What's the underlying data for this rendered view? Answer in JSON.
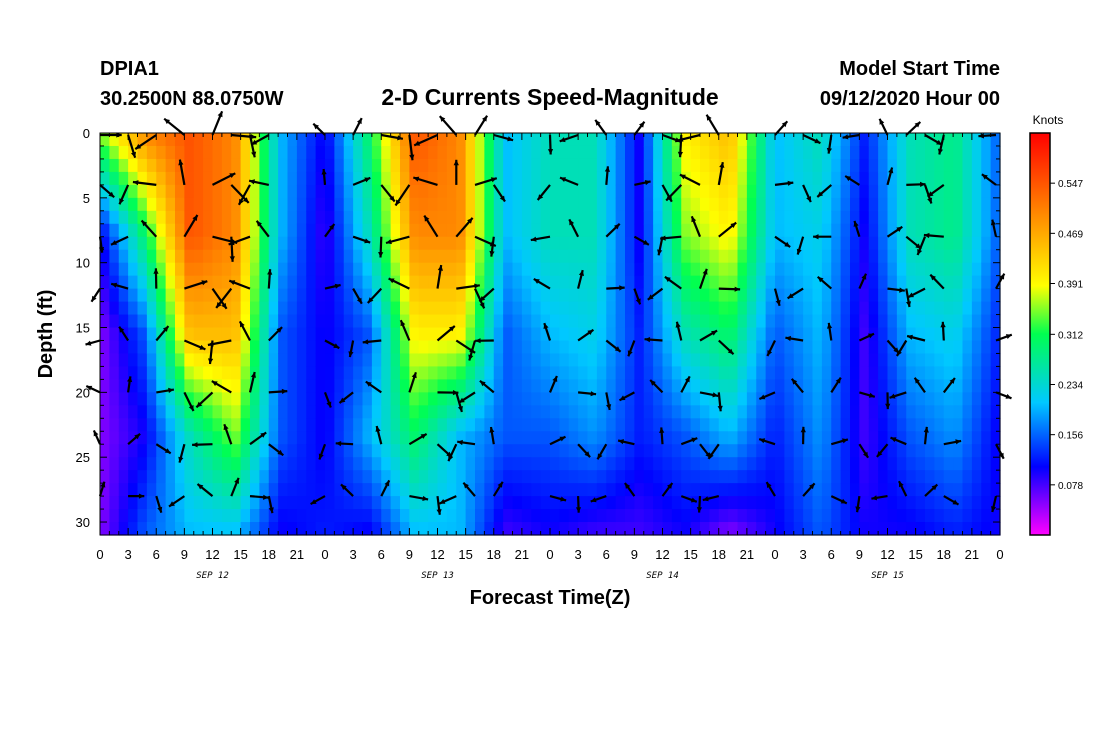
{
  "header": {
    "station": "DPIA1",
    "coords": "30.2500N 88.0750W",
    "title": "2-D Currents Speed-Magnitude",
    "model_label": "Model Start Time",
    "model_time": "09/12/2020 Hour 00"
  },
  "chart_data": {
    "type": "heatmap",
    "title": "2-D Currents Speed-Magnitude",
    "xlabel": "Forecast Time(Z)",
    "ylabel": "Depth (ft)",
    "xlim": [
      0,
      96
    ],
    "ylim": [
      31,
      0
    ],
    "x_ticks": [
      "0",
      "3",
      "6",
      "9",
      "12",
      "15",
      "18",
      "21",
      "0",
      "3",
      "6",
      "9",
      "12",
      "15",
      "18",
      "21",
      "0",
      "3",
      "6",
      "9",
      "12",
      "15",
      "18",
      "21",
      "0",
      "3",
      "6",
      "9",
      "12",
      "15",
      "18",
      "21",
      "0"
    ],
    "y_ticks": [
      "0",
      "5",
      "10",
      "15",
      "20",
      "25",
      "30"
    ],
    "y_tick_values": [
      0,
      5,
      10,
      15,
      20,
      25,
      30
    ],
    "date_labels": [
      "SEP 12",
      "SEP 13",
      "SEP 14",
      "SEP 15"
    ],
    "colorbar": {
      "unit": "Knots",
      "range": [
        0.0,
        0.625
      ],
      "ticks": [
        "0.078",
        "0.156",
        "0.234",
        "0.312",
        "0.391",
        "0.469",
        "0.547"
      ],
      "tick_values": [
        0.078,
        0.156,
        0.234,
        0.312,
        0.391,
        0.469,
        0.547
      ],
      "colors": [
        "#ff00ff",
        "#0000ff",
        "#00c8ff",
        "#00ff50",
        "#ffff00",
        "#ff8800",
        "#ff0000"
      ]
    },
    "arrow_columns_hours": [
      0,
      3,
      6,
      9,
      12,
      14,
      16,
      18,
      24,
      27,
      30,
      33,
      36,
      38,
      40,
      42,
      48,
      51,
      54,
      57,
      60,
      62,
      64,
      66,
      72,
      75,
      78,
      81,
      84,
      86,
      88,
      90,
      96
    ],
    "arrow_rows_ft": [
      0,
      4,
      8,
      12,
      16,
      20,
      24,
      28
    ],
    "speed_field_knots": [
      [
        0.35,
        0.1,
        0.05,
        0.05,
        0.05
      ],
      [
        0.5,
        0.3,
        0.15,
        0.1,
        0.15
      ],
      [
        0.55,
        0.55,
        0.45,
        0.25,
        0.2
      ],
      [
        0.5,
        0.5,
        0.45,
        0.35,
        0.2
      ],
      [
        0.2,
        0.2,
        0.15,
        0.15,
        0.1
      ],
      [
        0.1,
        0.08,
        0.1,
        0.1,
        0.12
      ],
      [
        0.3,
        0.25,
        0.15,
        0.2,
        0.1
      ],
      [
        0.55,
        0.5,
        0.4,
        0.3,
        0.2
      ],
      [
        0.5,
        0.5,
        0.4,
        0.2,
        0.2
      ],
      [
        0.2,
        0.2,
        0.15,
        0.15,
        0.08
      ],
      [
        0.25,
        0.25,
        0.2,
        0.15,
        0.1
      ],
      [
        0.25,
        0.25,
        0.22,
        0.18,
        0.08
      ],
      [
        0.1,
        0.1,
        0.12,
        0.12,
        0.08
      ],
      [
        0.4,
        0.35,
        0.25,
        0.15,
        0.1
      ],
      [
        0.45,
        0.4,
        0.3,
        0.2,
        0.05
      ],
      [
        0.2,
        0.2,
        0.15,
        0.12,
        0.1
      ],
      [
        0.25,
        0.22,
        0.2,
        0.18,
        0.15
      ],
      [
        0.12,
        0.1,
        0.08,
        0.08,
        0.1
      ],
      [
        0.25,
        0.25,
        0.2,
        0.15,
        0.1
      ],
      [
        0.28,
        0.28,
        0.22,
        0.18,
        0.12
      ],
      [
        0.15,
        0.15,
        0.12,
        0.1,
        0.1
      ]
    ]
  }
}
